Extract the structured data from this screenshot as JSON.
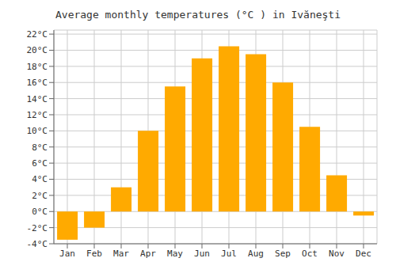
{
  "chart_data": {
    "type": "bar",
    "title": "Average monthly temperatures (°C ) in Ivăneşti",
    "categories": [
      "Jan",
      "Feb",
      "Mar",
      "Apr",
      "May",
      "Jun",
      "Jul",
      "Aug",
      "Sep",
      "Oct",
      "Nov",
      "Dec"
    ],
    "values": [
      -3.5,
      -2.0,
      3.0,
      10.0,
      15.5,
      19.0,
      20.5,
      19.5,
      16.0,
      10.5,
      4.5,
      -0.5
    ],
    "color": "#FFAA00",
    "ylim": [
      -4,
      22.5
    ],
    "yticks": [
      {
        "value": -4,
        "label": "-4°C"
      },
      {
        "value": -2,
        "label": "-2°C"
      },
      {
        "value": 0,
        "label": "0°C"
      },
      {
        "value": 2,
        "label": "2°C"
      },
      {
        "value": 4,
        "label": "4°C"
      },
      {
        "value": 6,
        "label": "6°C"
      },
      {
        "value": 8,
        "label": "8°C"
      },
      {
        "value": 10,
        "label": "10°C"
      },
      {
        "value": 12,
        "label": "12°C"
      },
      {
        "value": 14,
        "label": "14°C"
      },
      {
        "value": 16,
        "label": "16°C"
      },
      {
        "value": 18,
        "label": "18°C"
      },
      {
        "value": 20,
        "label": "20°C"
      },
      {
        "value": 22,
        "label": "22°C"
      }
    ],
    "grid": true
  }
}
